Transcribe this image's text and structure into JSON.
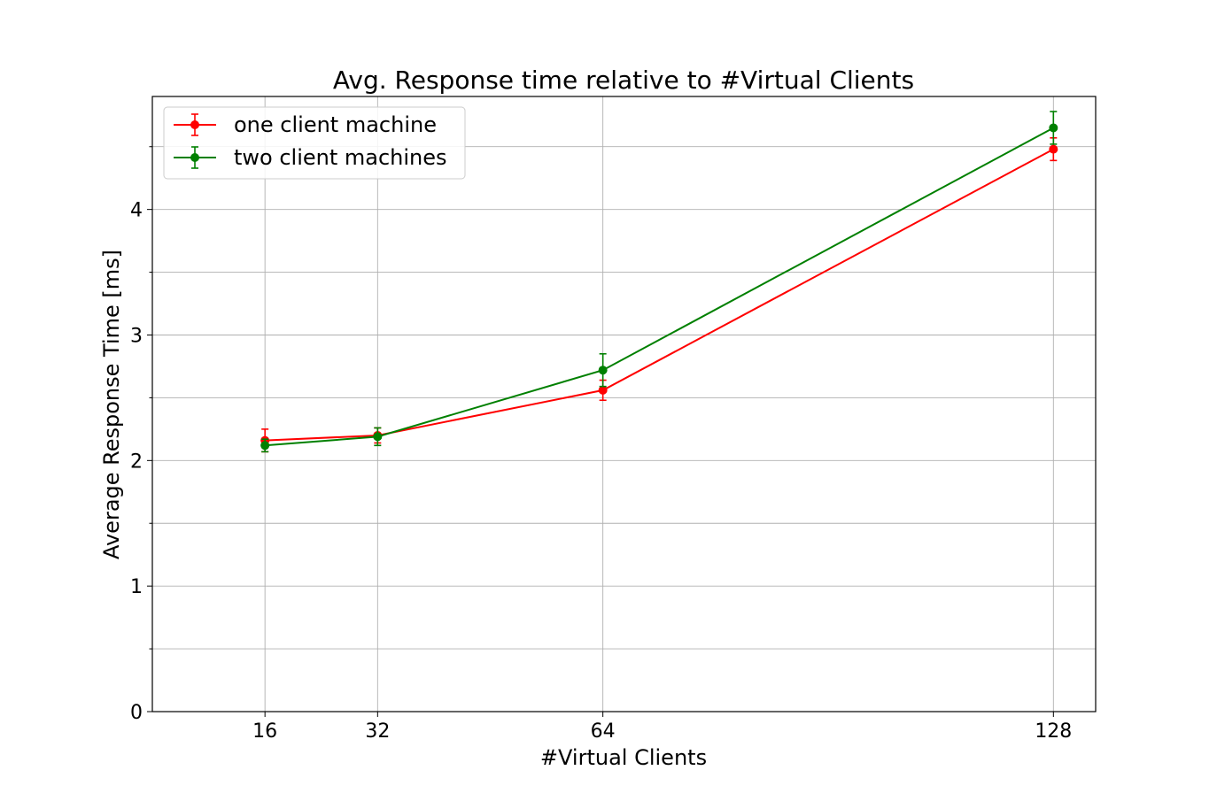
{
  "chart_data": {
    "type": "line",
    "title": "Avg. Response time relative to #Virtual Clients",
    "xlabel": "#Virtual Clients",
    "ylabel": "Average Response Time [ms]",
    "x": [
      16,
      32,
      64,
      128
    ],
    "x_tick_labels": [
      "16",
      "32",
      "64",
      "128"
    ],
    "xlim": [
      0,
      134
    ],
    "y_ticks": [
      0,
      1,
      2,
      3,
      4
    ],
    "y_tick_labels": [
      "0",
      "1",
      "2",
      "3",
      "4"
    ],
    "ylim": [
      0,
      4.9
    ],
    "grid": true,
    "legend_position": "top-left",
    "series": [
      {
        "name": "one client machine",
        "color": "#ff0000",
        "values": [
          2.16,
          2.2,
          2.56,
          4.48
        ],
        "error": [
          0.09,
          0.06,
          0.08,
          0.09
        ]
      },
      {
        "name": "two client machines",
        "color": "#008000",
        "values": [
          2.12,
          2.19,
          2.72,
          4.65
        ],
        "error": [
          0.05,
          0.07,
          0.13,
          0.13
        ]
      }
    ]
  }
}
